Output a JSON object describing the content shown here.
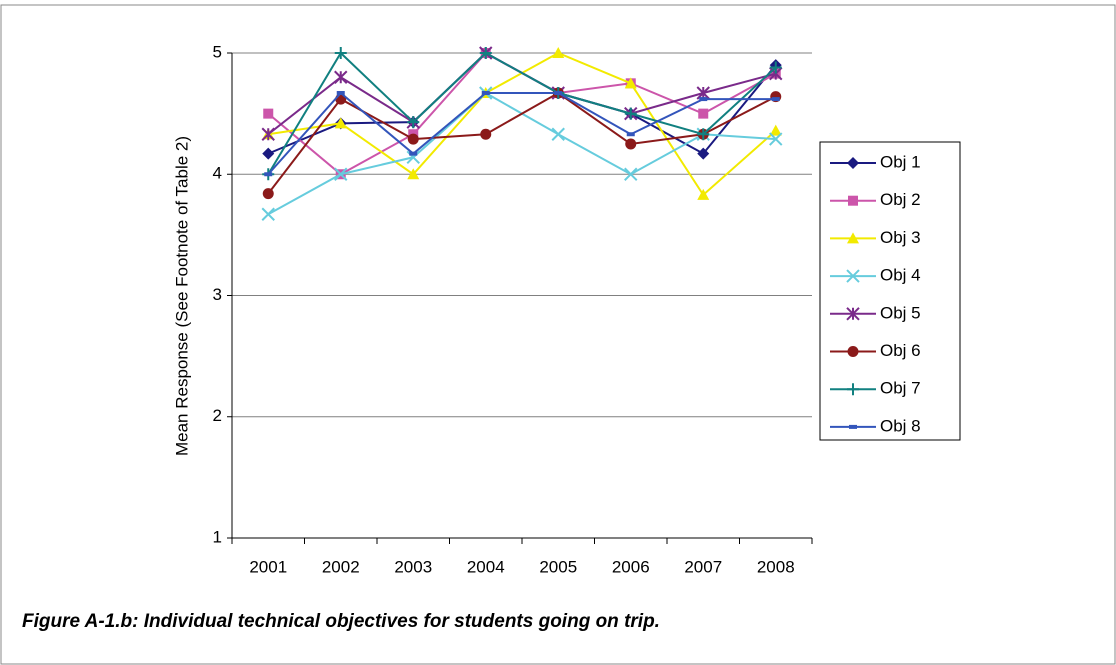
{
  "chart_data": {
    "type": "line",
    "ylabel": "Mean Response (See Footnote of Table 2)",
    "caption": "Figure A-1.b: Individual technical objectives for students going on trip.",
    "categories": [
      "2001",
      "2002",
      "2003",
      "2004",
      "2005",
      "2006",
      "2007",
      "2008"
    ],
    "series": [
      {
        "name": "Obj 1",
        "color": "#1a1a80",
        "marker": "diamond",
        "values": [
          4.17,
          4.42,
          4.43,
          5.0,
          4.67,
          4.5,
          4.17,
          4.9
        ]
      },
      {
        "name": "Obj 2",
        "color": "#cc55aa",
        "marker": "square",
        "values": [
          4.5,
          4.0,
          4.33,
          5.0,
          4.67,
          4.75,
          4.5,
          4.83
        ]
      },
      {
        "name": "Obj 3",
        "color": "#f2ea00",
        "marker": "triangle",
        "values": [
          4.33,
          4.42,
          4.0,
          4.67,
          5.0,
          4.75,
          3.83,
          4.36
        ]
      },
      {
        "name": "Obj 4",
        "color": "#66ccdd",
        "marker": "x",
        "values": [
          3.67,
          4.0,
          4.14,
          4.67,
          4.33,
          4.0,
          4.33,
          4.29
        ]
      },
      {
        "name": "Obj 5",
        "color": "#7a2a8a",
        "marker": "star",
        "values": [
          4.33,
          4.8,
          4.43,
          5.0,
          4.67,
          4.5,
          4.67,
          4.83
        ]
      },
      {
        "name": "Obj 6",
        "color": "#8b1a1a",
        "marker": "circle",
        "values": [
          3.84,
          4.62,
          4.29,
          4.33,
          4.67,
          4.25,
          4.33,
          4.64
        ]
      },
      {
        "name": "Obj 7",
        "color": "#118080",
        "marker": "plus",
        "values": [
          4.0,
          5.0,
          4.43,
          5.0,
          4.67,
          4.5,
          4.33,
          4.88
        ]
      },
      {
        "name": "Obj 8",
        "color": "#3355bb",
        "marker": "dash",
        "values": [
          4.0,
          4.67,
          4.17,
          4.67,
          4.67,
          4.33,
          4.62,
          4.62
        ]
      }
    ],
    "ylim": [
      1,
      5
    ],
    "yticks": [
      1,
      2,
      3,
      4,
      5
    ],
    "grid": true,
    "legend": "right"
  }
}
